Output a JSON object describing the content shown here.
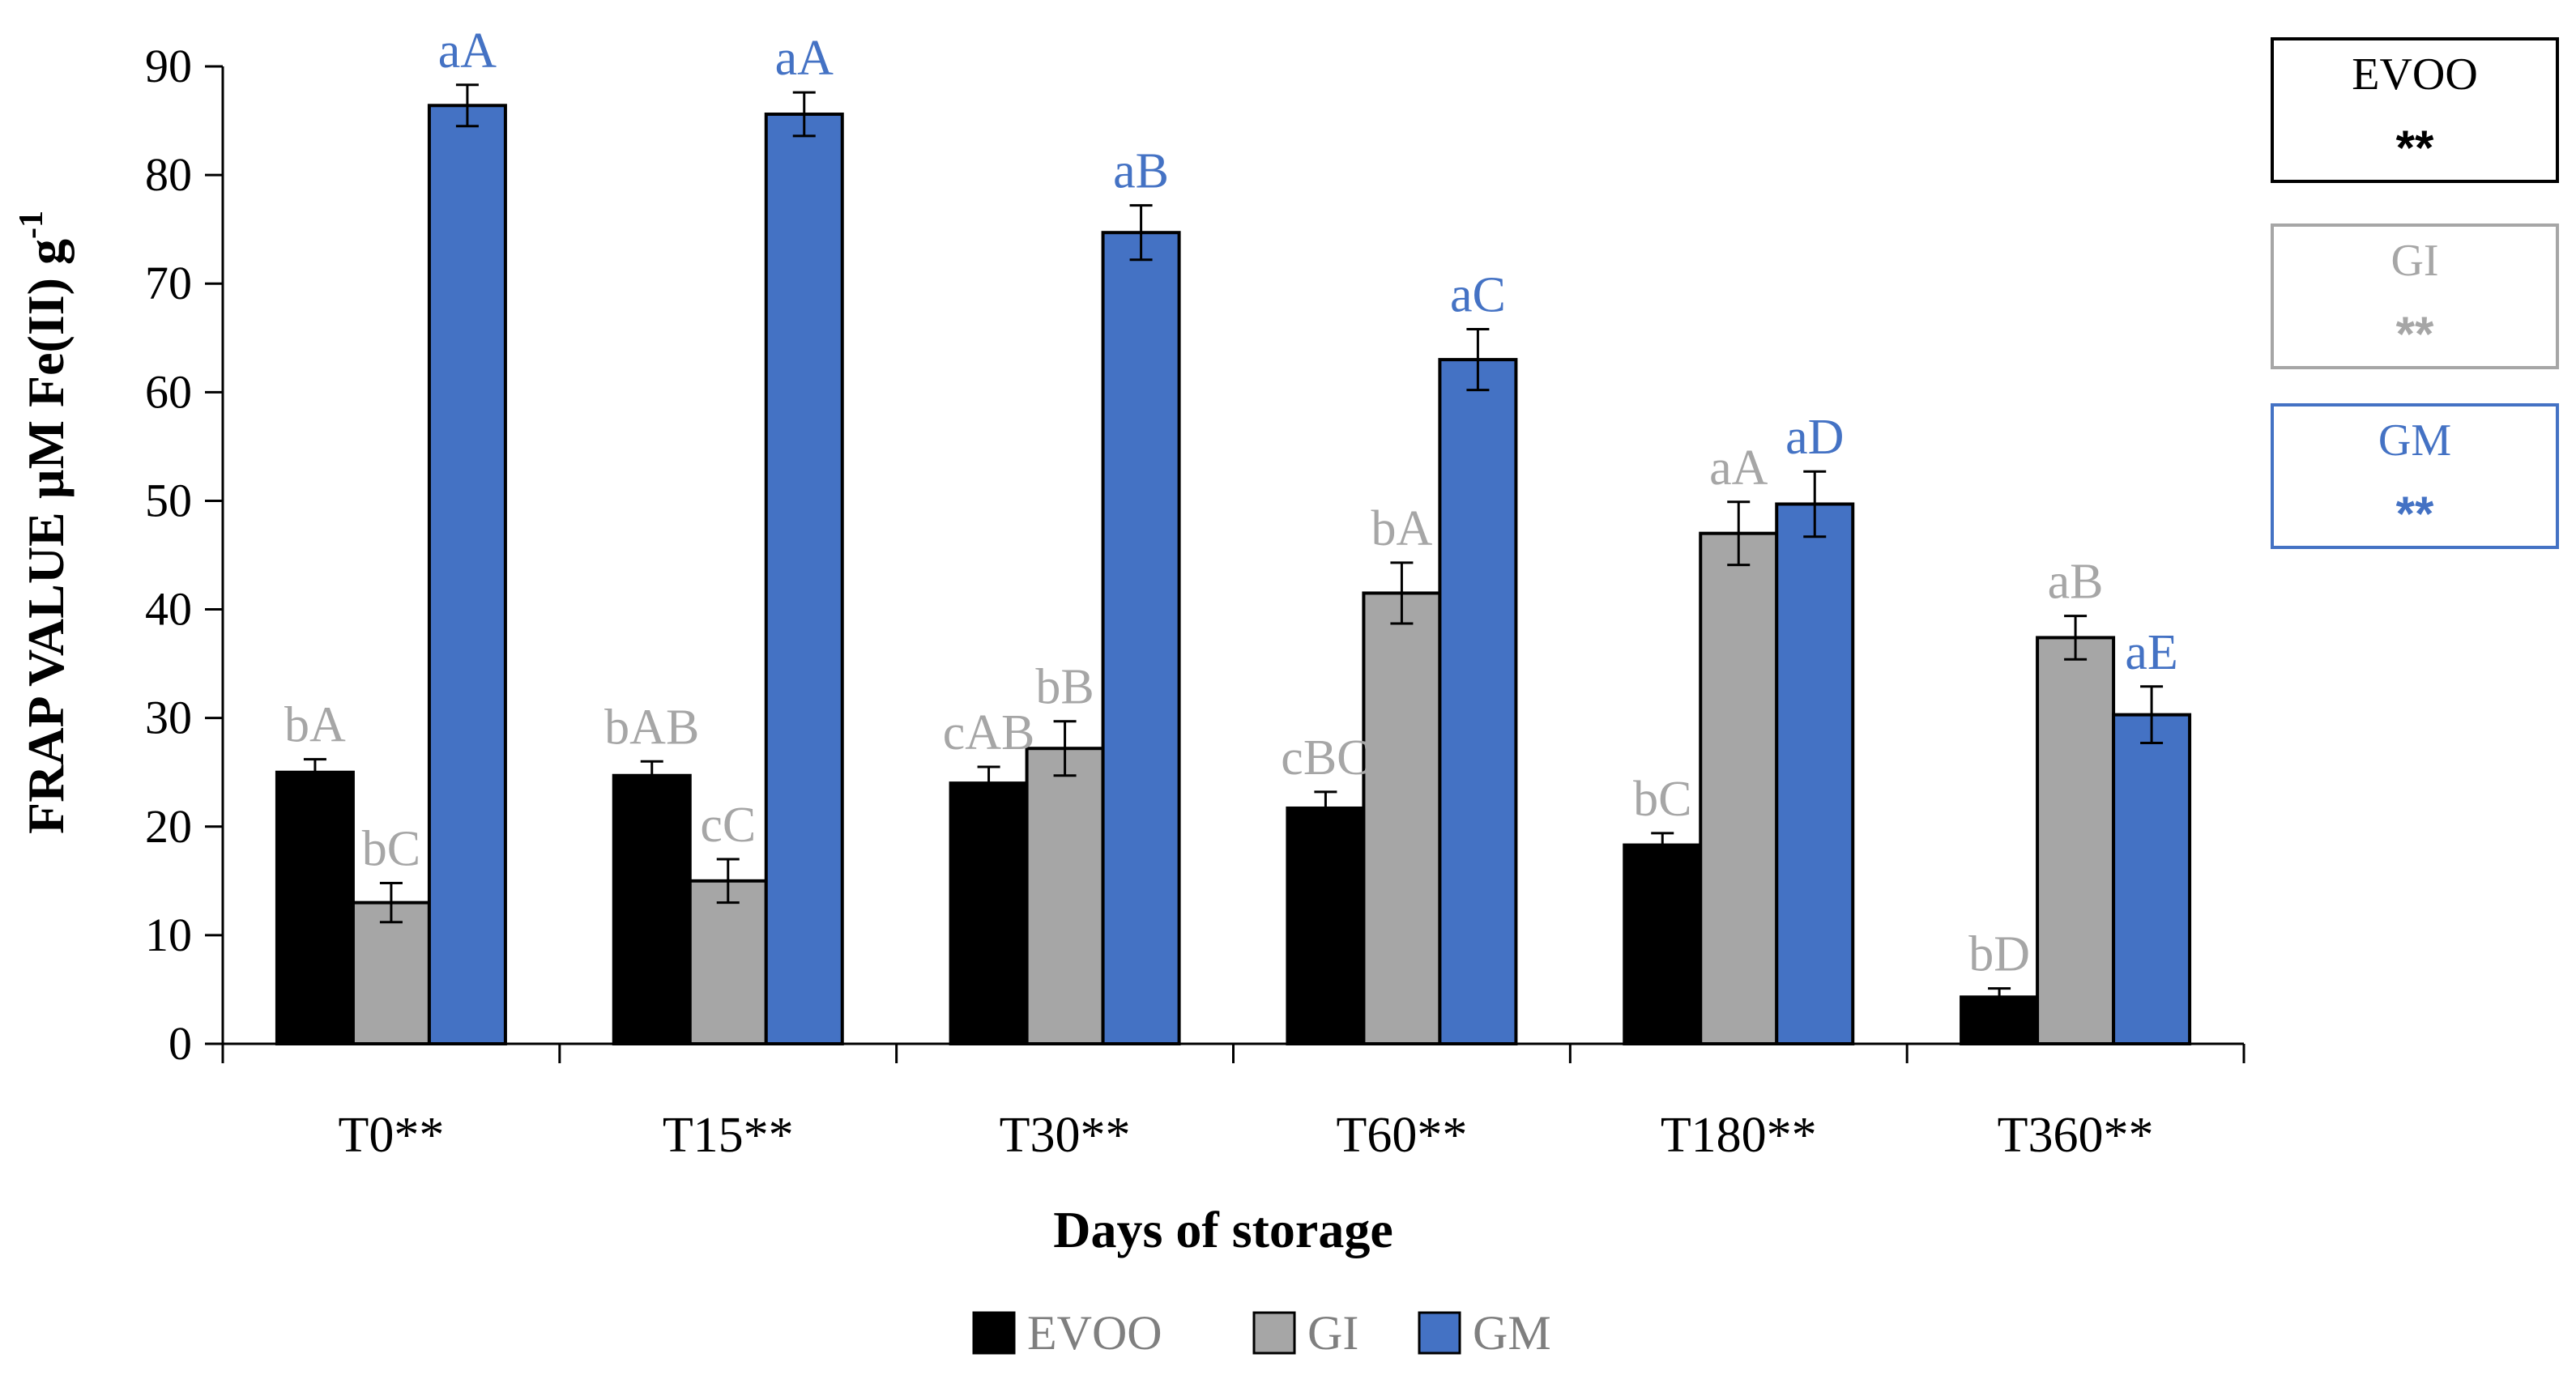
{
  "chart_data": {
    "type": "bar",
    "title": "",
    "xlabel": "Days of storage",
    "ylabel": "FRAP VALUE µM Fe(II) g",
    "ylabel_sup": "-1",
    "ylim": [
      0,
      90
    ],
    "yticks": [
      0,
      10,
      20,
      30,
      40,
      50,
      60,
      70,
      80,
      90
    ],
    "categories": [
      "T0**",
      "T15**",
      "T30**",
      "T60**",
      "T180**",
      "T360**"
    ],
    "series": [
      {
        "name": "EVOO",
        "color": "#000000",
        "values": [
          25.0,
          24.7,
          24.0,
          21.7,
          18.3,
          4.3
        ],
        "errors": [
          1.2,
          1.3,
          1.5,
          1.5,
          1.1,
          0.8
        ],
        "labels": [
          "bA",
          "bAB",
          "cAB",
          "cBC",
          "bC",
          "bD"
        ],
        "label_color": "#a6a6a6"
      },
      {
        "name": "GI",
        "color": "#a6a6a6",
        "values": [
          13.0,
          15.0,
          27.2,
          41.5,
          47.0,
          37.4
        ],
        "errors": [
          1.8,
          2.0,
          2.5,
          2.8,
          2.9,
          2.0
        ],
        "labels": [
          "bC",
          "cC",
          "bB",
          "bA",
          "aA",
          "aB"
        ],
        "label_color": "#a6a6a6"
      },
      {
        "name": "GM",
        "color": "#4472c4",
        "values": [
          86.4,
          85.6,
          74.7,
          63.0,
          49.7,
          30.3
        ],
        "errors": [
          1.9,
          2.0,
          2.5,
          2.8,
          3.0,
          2.6
        ],
        "labels": [
          "aA",
          "aA",
          "aB",
          "aC",
          "aD",
          "aE"
        ],
        "label_color": "#4472c4"
      }
    ],
    "legend": [
      "EVOO",
      "GI",
      "GM"
    ],
    "legend_position": "bottom",
    "significance_boxes": [
      {
        "name": "EVOO",
        "stars": "**",
        "color": "#000000"
      },
      {
        "name": "GI",
        "stars": "**",
        "color": "#a6a6a6"
      },
      {
        "name": "GM",
        "stars": "**",
        "color": "#4472c4"
      }
    ]
  }
}
